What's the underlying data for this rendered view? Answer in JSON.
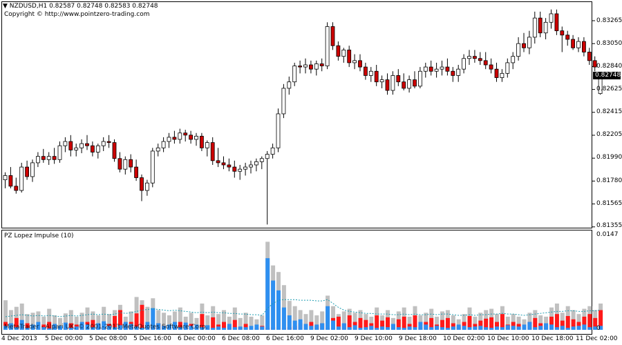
{
  "chart": {
    "title": "NZDUSD,H1  0.82587 0.82748 0.82583 0.82748",
    "copyright": "Copyright © http://www.pointzero-trading.com",
    "current_price": "0.82748",
    "price_axis": [
      "0.83265",
      "0.83050",
      "0.82840",
      "0.82625",
      "0.82415",
      "0.82205",
      "0.81990",
      "0.81780",
      "0.81565",
      "0.81355"
    ]
  },
  "indicator": {
    "title": "PZ Lopez Impulse (10)",
    "axis_max": "0.0147",
    "axis_zero": "0",
    "watermark": "MetaTrader - Alpari UK, © 2001-2013 MetaQuotes Software Corp."
  },
  "time_axis": [
    "4 Dec 2013",
    "5 Dec 00:00",
    "5 Dec 08:00",
    "5 Dec 16:00",
    "6 Dec 00:00",
    "6 Dec 08:00",
    "6 Dec 16:00",
    "9 Dec 02:00",
    "9 Dec 10:00",
    "9 Dec 18:00",
    "10 Dec 02:00",
    "10 Dec 10:00",
    "10 Dec 18:00",
    "11 Dec 02:00"
  ],
  "colors": {
    "bull_candle": "#ffffff",
    "bear_candle": "#cc0000",
    "impulse_up": "#2e8ff0",
    "impulse_down": "#ff1a1a",
    "impulse_total": "#c0c0c0",
    "signal_line": "#1a9bb0"
  },
  "chart_data": {
    "type": "candlestick",
    "symbol": "NZDUSD",
    "timeframe": "H1",
    "ylim": [
      0.8133,
      0.8345
    ],
    "ohlc": [
      [
        0.8178,
        0.8185,
        0.817,
        0.8182
      ],
      [
        0.8182,
        0.819,
        0.817,
        0.8172
      ],
      [
        0.8172,
        0.818,
        0.8165,
        0.8168
      ],
      [
        0.8168,
        0.8194,
        0.8166,
        0.819
      ],
      [
        0.819,
        0.8196,
        0.8178,
        0.8181
      ],
      [
        0.8181,
        0.8197,
        0.8176,
        0.8194
      ],
      [
        0.8194,
        0.8204,
        0.819,
        0.82
      ],
      [
        0.82,
        0.8207,
        0.8194,
        0.8197
      ],
      [
        0.8197,
        0.8204,
        0.8192,
        0.82
      ],
      [
        0.82,
        0.8208,
        0.8193,
        0.8197
      ],
      [
        0.8197,
        0.8214,
        0.8194,
        0.821
      ],
      [
        0.821,
        0.8218,
        0.8204,
        0.8214
      ],
      [
        0.8214,
        0.822,
        0.82,
        0.8206
      ],
      [
        0.8206,
        0.8212,
        0.82,
        0.8208
      ],
      [
        0.8208,
        0.8216,
        0.8203,
        0.8212
      ],
      [
        0.8212,
        0.822,
        0.8206,
        0.821
      ],
      [
        0.821,
        0.8214,
        0.82,
        0.8204
      ],
      [
        0.8204,
        0.8212,
        0.8198,
        0.821
      ],
      [
        0.821,
        0.8218,
        0.8205,
        0.8214
      ],
      [
        0.8214,
        0.822,
        0.8208,
        0.8213
      ],
      [
        0.8213,
        0.8216,
        0.8195,
        0.8198
      ],
      [
        0.8198,
        0.8204,
        0.8185,
        0.8188
      ],
      [
        0.8188,
        0.82,
        0.8183,
        0.8197
      ],
      [
        0.8197,
        0.8202,
        0.8185,
        0.819
      ],
      [
        0.819,
        0.8197,
        0.8177,
        0.818
      ],
      [
        0.818,
        0.8183,
        0.8158,
        0.8168
      ],
      [
        0.8168,
        0.8178,
        0.8163,
        0.8175
      ],
      [
        0.8175,
        0.8208,
        0.8171,
        0.8205
      ],
      [
        0.8205,
        0.8212,
        0.82,
        0.8208
      ],
      [
        0.8208,
        0.8218,
        0.8204,
        0.8214
      ],
      [
        0.8214,
        0.8222,
        0.8208,
        0.8218
      ],
      [
        0.8218,
        0.8224,
        0.8212,
        0.8216
      ],
      [
        0.8216,
        0.8226,
        0.8212,
        0.8222
      ],
      [
        0.8222,
        0.8225,
        0.8214,
        0.822
      ],
      [
        0.822,
        0.8224,
        0.8212,
        0.8216
      ],
      [
        0.8216,
        0.8222,
        0.821,
        0.8219
      ],
      [
        0.8219,
        0.8222,
        0.8205,
        0.8208
      ],
      [
        0.8208,
        0.8215,
        0.82,
        0.8213
      ],
      [
        0.8213,
        0.8218,
        0.8192,
        0.8196
      ],
      [
        0.8196,
        0.8208,
        0.819,
        0.8194
      ],
      [
        0.8194,
        0.82,
        0.8188,
        0.8192
      ],
      [
        0.8192,
        0.8198,
        0.8186,
        0.819
      ],
      [
        0.819,
        0.8196,
        0.818,
        0.8186
      ],
      [
        0.8186,
        0.8192,
        0.8178,
        0.8188
      ],
      [
        0.8188,
        0.8194,
        0.8182,
        0.819
      ],
      [
        0.819,
        0.8196,
        0.8184,
        0.8192
      ],
      [
        0.8192,
        0.8198,
        0.8186,
        0.8195
      ],
      [
        0.8195,
        0.82,
        0.8188,
        0.8198
      ],
      [
        0.8198,
        0.8205,
        0.8136,
        0.8202
      ],
      [
        0.8202,
        0.8212,
        0.8198,
        0.8208
      ],
      [
        0.8208,
        0.8245,
        0.8204,
        0.824
      ],
      [
        0.824,
        0.8268,
        0.8236,
        0.8264
      ],
      [
        0.8264,
        0.8275,
        0.8258,
        0.827
      ],
      [
        0.827,
        0.8288,
        0.8266,
        0.8285
      ],
      [
        0.8285,
        0.829,
        0.8278,
        0.8284
      ],
      [
        0.8284,
        0.8292,
        0.8278,
        0.8286
      ],
      [
        0.8286,
        0.829,
        0.8278,
        0.8282
      ],
      [
        0.8282,
        0.829,
        0.8276,
        0.8287
      ],
      [
        0.8287,
        0.8292,
        0.828,
        0.8285
      ],
      [
        0.8285,
        0.8326,
        0.8282,
        0.8322
      ],
      [
        0.8322,
        0.8326,
        0.83,
        0.8304
      ],
      [
        0.8304,
        0.8308,
        0.829,
        0.8294
      ],
      [
        0.8294,
        0.8302,
        0.8288,
        0.83
      ],
      [
        0.83,
        0.8304,
        0.8284,
        0.8288
      ],
      [
        0.8288,
        0.8296,
        0.8282,
        0.829
      ],
      [
        0.829,
        0.8296,
        0.828,
        0.8284
      ],
      [
        0.8284,
        0.8288,
        0.8272,
        0.8276
      ],
      [
        0.8276,
        0.8284,
        0.827,
        0.828
      ],
      [
        0.828,
        0.8286,
        0.8266,
        0.827
      ],
      [
        0.827,
        0.8276,
        0.8264,
        0.8272
      ],
      [
        0.8272,
        0.8278,
        0.8258,
        0.8262
      ],
      [
        0.8262,
        0.828,
        0.8258,
        0.8276
      ],
      [
        0.8276,
        0.8282,
        0.8266,
        0.827
      ],
      [
        0.827,
        0.8278,
        0.8262,
        0.8264
      ],
      [
        0.8264,
        0.8276,
        0.826,
        0.8272
      ],
      [
        0.8272,
        0.828,
        0.8264,
        0.8266
      ],
      [
        0.8266,
        0.8284,
        0.8264,
        0.828
      ],
      [
        0.828,
        0.8288,
        0.8274,
        0.8284
      ],
      [
        0.8284,
        0.829,
        0.8276,
        0.828
      ],
      [
        0.828,
        0.8288,
        0.8274,
        0.8282
      ],
      [
        0.8282,
        0.829,
        0.8276,
        0.8284
      ],
      [
        0.8284,
        0.8292,
        0.8276,
        0.828
      ],
      [
        0.828,
        0.8284,
        0.827,
        0.8276
      ],
      [
        0.8276,
        0.8286,
        0.827,
        0.8282
      ],
      [
        0.8282,
        0.8296,
        0.8278,
        0.8292
      ],
      [
        0.8292,
        0.83,
        0.8286,
        0.8294
      ],
      [
        0.8294,
        0.83,
        0.8288,
        0.8292
      ],
      [
        0.8292,
        0.8298,
        0.8286,
        0.829
      ],
      [
        0.829,
        0.8298,
        0.8282,
        0.8286
      ],
      [
        0.8286,
        0.8292,
        0.8278,
        0.8282
      ],
      [
        0.8282,
        0.8288,
        0.827,
        0.8274
      ],
      [
        0.8274,
        0.8282,
        0.827,
        0.8278
      ],
      [
        0.8278,
        0.8292,
        0.8274,
        0.8288
      ],
      [
        0.8288,
        0.8298,
        0.8282,
        0.8294
      ],
      [
        0.8294,
        0.8312,
        0.829,
        0.8306
      ],
      [
        0.8306,
        0.8316,
        0.8298,
        0.8302
      ],
      [
        0.8302,
        0.8318,
        0.8296,
        0.8312
      ],
      [
        0.8312,
        0.8336,
        0.8306,
        0.833
      ],
      [
        0.833,
        0.8336,
        0.8312,
        0.8316
      ],
      [
        0.8316,
        0.833,
        0.831,
        0.8326
      ],
      [
        0.8326,
        0.8338,
        0.832,
        0.8334
      ],
      [
        0.8334,
        0.8338,
        0.8314,
        0.8318
      ],
      [
        0.8318,
        0.8322,
        0.8298,
        0.8314
      ],
      [
        0.8314,
        0.8318,
        0.8304,
        0.831
      ],
      [
        0.831,
        0.8314,
        0.83,
        0.8302
      ],
      [
        0.8302,
        0.8312,
        0.8298,
        0.8308
      ],
      [
        0.8308,
        0.8312,
        0.8294,
        0.8298
      ],
      [
        0.8298,
        0.8302,
        0.8286,
        0.829
      ],
      [
        0.829,
        0.8294,
        0.828,
        0.8284
      ],
      [
        0.8259,
        0.8275,
        0.8258,
        0.8275
      ]
    ],
    "impulse": {
      "axis_max": 0.0147,
      "up": [
        0.0006,
        0.001,
        0.0004,
        0.0015,
        0.0003,
        0.0008,
        0.0012,
        0.0004,
        0.0002,
        0.0009,
        0.0006,
        0.0011,
        0.0003,
        0.0005,
        0.0012,
        0.0008,
        0.0004,
        0.001,
        0.0013,
        0.0006,
        0.0004,
        0.0007,
        0.0012,
        0.0009,
        0.0005,
        0.0003,
        0.0012,
        0.0033,
        0.001,
        0.0006,
        0.0008,
        0.0012,
        0.0004,
        0.0011,
        0.0006,
        0.0008,
        0.0004,
        0.0007,
        0.0003,
        0.0005,
        0.0003,
        0.0009,
        0.0004,
        0.0005,
        0.0004,
        0.0006,
        0.0008,
        0.0005,
        0.0109,
        0.0075,
        0.006,
        0.0034,
        0.0022,
        0.0014,
        0.0016,
        0.0009,
        0.0006,
        0.0008,
        0.001,
        0.0036,
        0.0014,
        0.0005,
        0.001,
        0.0004,
        0.0007,
        0.0003,
        0.0004,
        0.0006,
        0.0003,
        0.0005,
        0.0004,
        0.0009,
        0.0004,
        0.0003,
        0.0005,
        0.0004,
        0.0012,
        0.0008,
        0.0004,
        0.0006,
        0.0004,
        0.0003,
        0.0005,
        0.0008,
        0.0006,
        0.0004,
        0.0005,
        0.0006,
        0.0004,
        0.0003,
        0.0005,
        0.0004,
        0.0007,
        0.0006,
        0.0005,
        0.0008,
        0.0012,
        0.0004,
        0.0006,
        0.001,
        0.0008,
        0.0004,
        0.0006,
        0.0003,
        0.0005,
        0.0006,
        0.0008,
        0.0004,
        0.0005,
        0.0006
      ],
      "down": [
        0.0012,
        0.0006,
        0.0018,
        0.0005,
        0.001,
        0.0004,
        0.0003,
        0.0008,
        0.0012,
        0.0006,
        0.0004,
        0.0005,
        0.001,
        0.0008,
        0.0004,
        0.0012,
        0.0015,
        0.0005,
        0.0004,
        0.0009,
        0.0021,
        0.003,
        0.0006,
        0.0012,
        0.0025,
        0.0038,
        0.0008,
        0.0004,
        0.001,
        0.0006,
        0.0005,
        0.0006,
        0.0012,
        0.0004,
        0.0009,
        0.0005,
        0.0024,
        0.0006,
        0.0019,
        0.0008,
        0.0012,
        0.0006,
        0.0015,
        0.0004,
        0.0009,
        0.0005,
        0.0003,
        0.0006,
        0.0003,
        0.0004,
        0.0002,
        0.0003,
        0.0004,
        0.0006,
        0.001,
        0.0008,
        0.0012,
        0.0006,
        0.001,
        0.0003,
        0.0018,
        0.002,
        0.0009,
        0.0022,
        0.0012,
        0.0018,
        0.0015,
        0.001,
        0.0022,
        0.0014,
        0.0019,
        0.0008,
        0.0016,
        0.002,
        0.0009,
        0.0022,
        0.0004,
        0.0012,
        0.0018,
        0.0008,
        0.0015,
        0.0018,
        0.001,
        0.0005,
        0.0012,
        0.0021,
        0.0009,
        0.0014,
        0.0017,
        0.0019,
        0.0012,
        0.0024,
        0.0008,
        0.0012,
        0.0009,
        0.0005,
        0.0012,
        0.0018,
        0.001,
        0.0008,
        0.002,
        0.0024,
        0.0014,
        0.0021,
        0.0016,
        0.0012,
        0.002,
        0.0024,
        0.0018,
        0.003
      ],
      "total": [
        0.0045,
        0.003,
        0.0035,
        0.004,
        0.0024,
        0.0026,
        0.0028,
        0.002,
        0.0032,
        0.0022,
        0.0018,
        0.0025,
        0.003,
        0.002,
        0.0026,
        0.0034,
        0.0028,
        0.0022,
        0.0035,
        0.0024,
        0.003,
        0.0038,
        0.002,
        0.0028,
        0.005,
        0.0045,
        0.0035,
        0.0048,
        0.003,
        0.0026,
        0.0022,
        0.0028,
        0.0034,
        0.002,
        0.0026,
        0.0018,
        0.004,
        0.0022,
        0.0036,
        0.0024,
        0.003,
        0.002,
        0.0034,
        0.0018,
        0.0026,
        0.002,
        0.0016,
        0.0022,
        0.0134,
        0.0098,
        0.0088,
        0.0068,
        0.0044,
        0.0036,
        0.003,
        0.0024,
        0.003,
        0.0022,
        0.0028,
        0.0052,
        0.0036,
        0.0024,
        0.0028,
        0.0032,
        0.0026,
        0.003,
        0.0024,
        0.002,
        0.0034,
        0.0022,
        0.003,
        0.0018,
        0.0028,
        0.0034,
        0.002,
        0.0036,
        0.0022,
        0.0026,
        0.0032,
        0.002,
        0.0028,
        0.003,
        0.0022,
        0.0016,
        0.0024,
        0.0034,
        0.002,
        0.0026,
        0.003,
        0.0032,
        0.0024,
        0.0036,
        0.002,
        0.0024,
        0.002,
        0.0016,
        0.0026,
        0.003,
        0.0022,
        0.002,
        0.0034,
        0.004,
        0.0026,
        0.0036,
        0.003,
        0.0024,
        0.0032,
        0.0036,
        0.003,
        0.004
      ],
      "signal": [
        0.002,
        0.0021,
        0.0022,
        0.0023,
        0.0022,
        0.0021,
        0.0022,
        0.0021,
        0.0022,
        0.0021,
        0.002,
        0.0021,
        0.0022,
        0.0021,
        0.0022,
        0.0023,
        0.0024,
        0.0023,
        0.0024,
        0.0023,
        0.0024,
        0.0026,
        0.0025,
        0.0026,
        0.0028,
        0.003,
        0.0031,
        0.0032,
        0.0031,
        0.003,
        0.0029,
        0.003,
        0.0029,
        0.0028,
        0.0027,
        0.0026,
        0.0027,
        0.0026,
        0.0027,
        0.0026,
        0.0026,
        0.0025,
        0.0025,
        0.0024,
        0.0024,
        0.0023,
        0.0023,
        0.0022,
        0.0033,
        0.004,
        0.0045,
        0.0046,
        0.0046,
        0.0046,
        0.0045,
        0.0045,
        0.0045,
        0.0044,
        0.0044,
        0.0046,
        0.004,
        0.0034,
        0.003,
        0.0028,
        0.0027,
        0.0026,
        0.0025,
        0.0025,
        0.0024,
        0.0024,
        0.0024,
        0.0023,
        0.0023,
        0.0024,
        0.0023,
        0.0024,
        0.0023,
        0.0023,
        0.0024,
        0.0023,
        0.0024,
        0.0024,
        0.0023,
        0.0022,
        0.0022,
        0.0023,
        0.0022,
        0.0023,
        0.0023,
        0.0024,
        0.0024,
        0.0025,
        0.0024,
        0.0024,
        0.0023,
        0.0022,
        0.0023,
        0.0024,
        0.0025,
        0.0026,
        0.0027,
        0.0028,
        0.0028,
        0.0029,
        0.0029,
        0.0028,
        0.0028,
        0.0029,
        0.0029,
        0.003
      ]
    }
  }
}
